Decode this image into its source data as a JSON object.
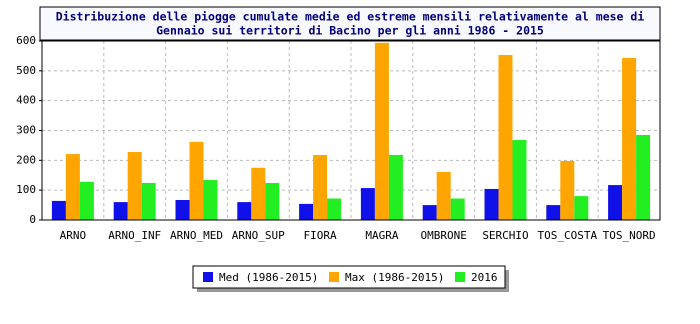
{
  "chart_data": {
    "type": "bar",
    "title": [
      "Distribuzione delle piogge cumulate medie ed estreme mensili relativamente al mese di",
      "Gennaio sui territori di Bacino per gli anni 1986 - 2015"
    ],
    "categories": [
      "ARNO",
      "ARNO_INF",
      "ARNO_MED",
      "ARNO_SUP",
      "FIORA",
      "MAGRA",
      "OMBRONE",
      "SERCHIO",
      "TOS_COSTA",
      "TOS_NORD"
    ],
    "series": [
      {
        "name": "Med (1986-2015)",
        "color": "#1010e8",
        "values": [
          64,
          60,
          67,
          60,
          54,
          107,
          50,
          104,
          50,
          117
        ]
      },
      {
        "name": "Max (1986-2015)",
        "color": "#ffa500",
        "values": [
          221,
          228,
          262,
          175,
          218,
          594,
          161,
          553,
          198,
          543
        ]
      },
      {
        "name": "2016",
        "color": "#22ee22",
        "values": [
          128,
          124,
          134,
          124,
          72,
          218,
          72,
          268,
          80,
          285
        ]
      }
    ],
    "ylim": [
      0,
      600
    ],
    "yticks": [
      0,
      100,
      200,
      300,
      400,
      500,
      600
    ],
    "grid": true,
    "legend": "bottom"
  }
}
